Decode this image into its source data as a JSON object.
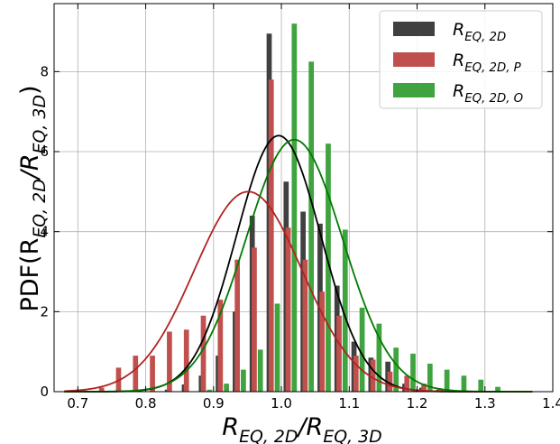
{
  "chart_data": {
    "type": "bar",
    "title": "",
    "xlabel": "R_{EQ, 2D}/R_{EQ, 3D}",
    "ylabel": "PDF(R_{EQ, 2D}/R_{EQ, 3D})",
    "xlim": [
      0.665,
      1.4
    ],
    "ylim": [
      0,
      9.7
    ],
    "xticks": [
      0.7,
      0.8,
      0.9,
      1.0,
      1.1,
      1.2,
      1.3,
      1.4
    ],
    "xtick_labels": [
      "0.7",
      "0.8",
      "0.9",
      "1.0",
      "1.1",
      "1.2",
      "1.3",
      "1.4"
    ],
    "yticks": [
      0,
      2,
      4,
      6,
      8
    ],
    "ytick_labels": [
      "0",
      "2",
      "4",
      "6",
      "8"
    ],
    "grid": true,
    "legend_position": "top-right",
    "series": [
      {
        "name": "R_{EQ, 2D}",
        "color": "#404040",
        "bar_x": [
          0.832,
          0.857,
          0.882,
          0.907,
          0.932,
          0.957,
          0.982,
          1.007,
          1.032,
          1.057,
          1.082,
          1.107,
          1.132,
          1.157,
          1.182,
          1.207,
          1.232,
          1.257
        ],
        "bar_values": [
          0.05,
          0.18,
          0.4,
          0.9,
          2.0,
          4.4,
          8.95,
          5.25,
          4.5,
          4.2,
          2.65,
          1.25,
          0.85,
          0.75,
          0.2,
          0.1,
          0.05,
          0.03
        ],
        "fit": {
          "mean": 0.996,
          "sd": 0.0625,
          "peak": 6.4,
          "color": "#000000"
        }
      },
      {
        "name": "R_{EQ, 2D, P}",
        "color": "#c0504d",
        "bar_x": [
          0.71,
          0.735,
          0.76,
          0.785,
          0.81,
          0.835,
          0.86,
          0.885,
          0.91,
          0.935,
          0.96,
          0.985,
          1.01,
          1.035,
          1.06,
          1.085,
          1.11,
          1.135,
          1.16,
          1.185,
          1.21,
          1.235
        ],
        "bar_values": [
          0.03,
          0.1,
          0.6,
          0.9,
          0.9,
          1.5,
          1.55,
          1.9,
          2.3,
          3.3,
          3.6,
          7.8,
          4.1,
          3.3,
          2.5,
          1.9,
          0.9,
          0.8,
          0.5,
          0.4,
          0.2,
          0.05
        ],
        "fit": {
          "mean": 0.951,
          "sd": 0.0795,
          "peak": 5.0,
          "color": "#b22222"
        }
      },
      {
        "name": "R_{EQ, 2D, O}",
        "color": "#3fa33f",
        "bar_x": [
          0.894,
          0.919,
          0.944,
          0.969,
          0.994,
          1.019,
          1.044,
          1.069,
          1.094,
          1.119,
          1.144,
          1.169,
          1.194,
          1.219,
          1.244,
          1.269,
          1.294,
          1.319
        ],
        "bar_values": [
          0.05,
          0.2,
          0.55,
          1.05,
          2.2,
          9.2,
          8.25,
          6.2,
          4.05,
          2.1,
          1.7,
          1.1,
          0.95,
          0.7,
          0.55,
          0.4,
          0.3,
          0.12
        ],
        "fit": {
          "mean": 1.019,
          "sd": 0.0712,
          "peak": 6.3,
          "color": "#007a00"
        }
      }
    ]
  }
}
